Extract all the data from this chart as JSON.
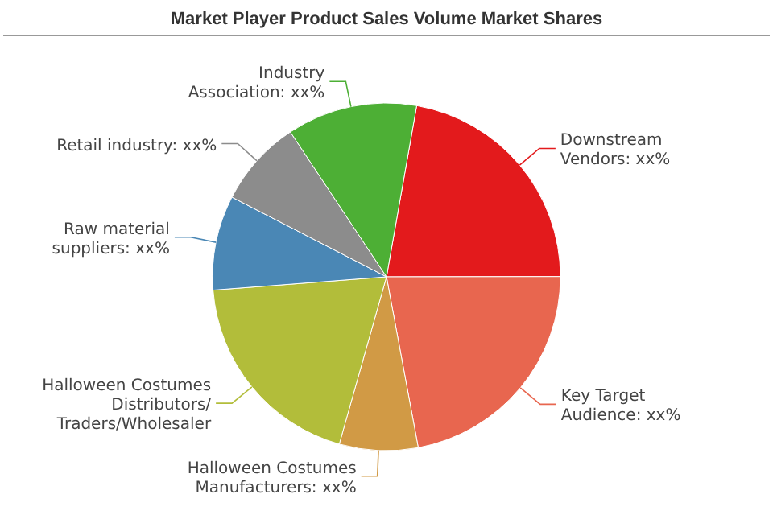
{
  "chart_data": {
    "type": "pie",
    "title": "Market Player Product Sales Volume Market Shares",
    "categories": [
      "Downstream Vendors",
      "Key Target Audience",
      "Halloween Costumes Manufacturers",
      "Halloween Costumes Distributors/Traders/Wholesaler",
      "Raw material suppliers",
      "Retail industry",
      "Industry Association"
    ],
    "values": [
      22.2,
      22.1,
      7.3,
      19.4,
      8.8,
      8.1,
      12.1
    ],
    "value_labels": [
      "xx%",
      "xx%",
      "xx%",
      null,
      "xx%",
      "xx%",
      "xx%"
    ],
    "colors": [
      "#e31a1c",
      "#e8664f",
      "#d19a45",
      "#b2bd3a",
      "#4a87b5",
      "#8c8c8c",
      "#4daf35"
    ],
    "legend": false
  }
}
